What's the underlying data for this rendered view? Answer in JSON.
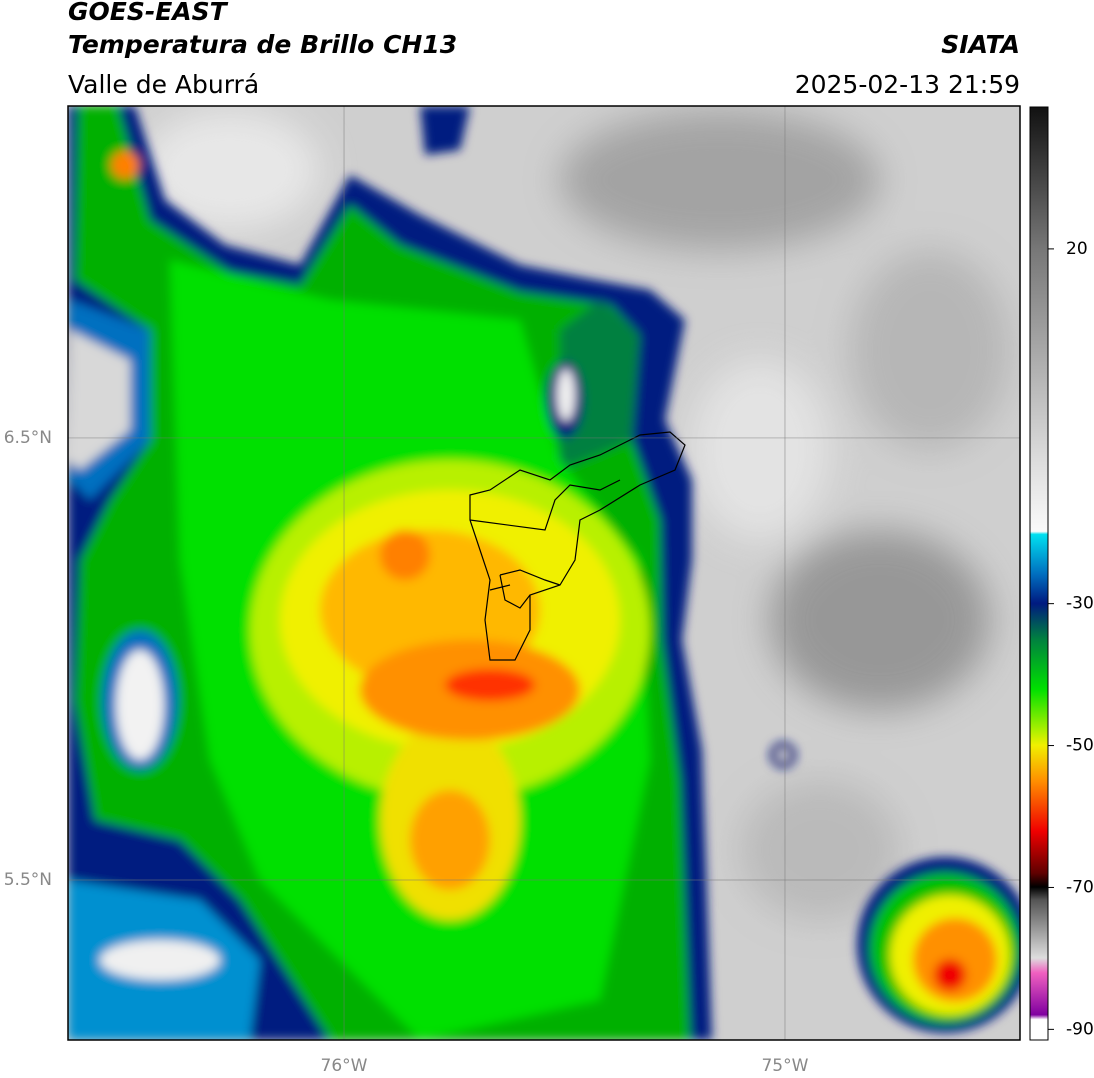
{
  "header": {
    "title": "GOES-EAST",
    "subtitle": "Temperatura de Brillo CH13",
    "region": "Valle de Aburrá",
    "source": "SIATA",
    "timestamp": "2025-02-13 21:59"
  },
  "map": {
    "xlim": [
      -76.626,
      -74.467
    ],
    "ylim": [
      5.138,
      7.251
    ],
    "xticks": [
      {
        "value": -76,
        "label": "76°W"
      },
      {
        "value": -75,
        "label": "75°W"
      }
    ],
    "yticks": [
      {
        "value": 6.5,
        "label": "6.5°N"
      },
      {
        "value": 5.5,
        "label": "5.5°N"
      }
    ],
    "grid": true
  },
  "colorbar": {
    "lim": [
      -91.5,
      40
    ],
    "ticks": [
      20,
      -30,
      -50,
      -70,
      -90
    ]
  }
}
